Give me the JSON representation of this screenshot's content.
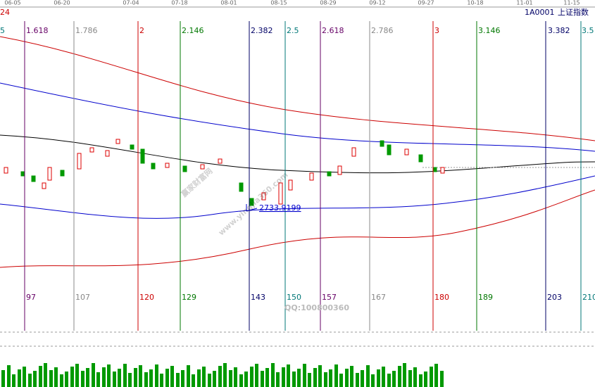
{
  "header": {
    "left_label": "24",
    "code": "1A0001",
    "name": "上证指数"
  },
  "date_axis": [
    "06-05",
    "06-20",
    "07-04",
    "07-18",
    "08-01",
    "08-15",
    "08-29",
    "09-12",
    "09-27",
    "10-18",
    "11-01",
    "11-15"
  ],
  "fib_ratios": [
    "5",
    "1.618",
    "1.786",
    "2",
    "2.146",
    "2.382",
    "2.5",
    "2.618",
    "2.786",
    "3",
    "3.146",
    "3.382",
    "3.5"
  ],
  "day_counts": [
    "97",
    "107",
    "120",
    "129",
    "143",
    "150",
    "157",
    "167",
    "180",
    "189",
    "203",
    "210"
  ],
  "price_label": "2733.9199",
  "watermark": {
    "title": "赢家财富网",
    "url": "www.yingjia360.com",
    "qq": "QQ:100800360"
  }
}
